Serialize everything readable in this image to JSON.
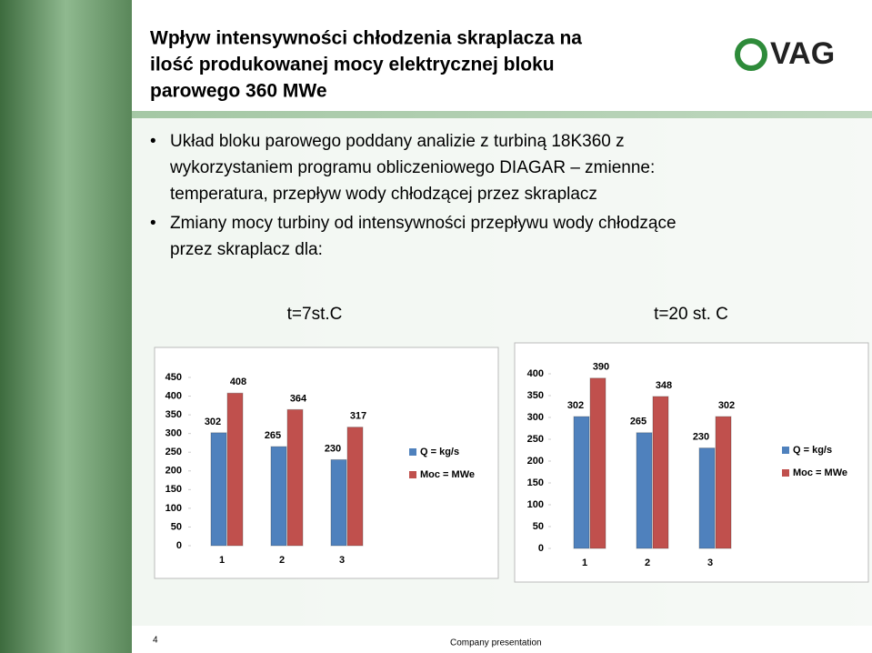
{
  "title": [
    "Wpływ  intensywności chłodzenia skraplacza na",
    "ilość produkowanej mocy elektrycznej bloku",
    "parowego 360 MWe"
  ],
  "logo": "VAG",
  "bullets": [
    [
      "Układ bloku parowego poddany analizie z turbiną 18K360 z",
      "wykorzystaniem programu obliczeniowego DIAGAR – zmienne:",
      "temperatura,  przepływ wody chłodzącej przez skraplacz"
    ],
    [
      "Zmiany mocy turbiny od intensywności przepływu wody chłodzące",
      "przez skraplacz dla:"
    ]
  ],
  "footer": {
    "page": "4",
    "text": "Company presentation"
  },
  "chart_data": [
    {
      "type": "bar",
      "title": "t=7st.C",
      "categories": [
        "1",
        "2",
        "3"
      ],
      "series": [
        {
          "name": "Q = kg/s",
          "color": "#4f81bd",
          "values": [
            302,
            265,
            230
          ]
        },
        {
          "name": "Moc  = MWe",
          "color": "#c0504d",
          "values": [
            408,
            364,
            317
          ]
        }
      ],
      "ylim": [
        0,
        450
      ],
      "yticks": [
        0,
        50,
        100,
        150,
        200,
        250,
        300,
        350,
        400,
        450
      ],
      "legend": "right"
    },
    {
      "type": "bar",
      "title": "t=20 st. C",
      "categories": [
        "1",
        "2",
        "3"
      ],
      "series": [
        {
          "name": "Q = kg/s",
          "color": "#4f81bd",
          "values": [
            302,
            265,
            230
          ]
        },
        {
          "name": "Moc = MWe",
          "color": "#c0504d",
          "values": [
            390,
            348,
            302
          ]
        }
      ],
      "ylim": [
        0,
        400
      ],
      "yticks": [
        0,
        50,
        100,
        150,
        200,
        250,
        300,
        350,
        400
      ],
      "legend": "right"
    }
  ]
}
